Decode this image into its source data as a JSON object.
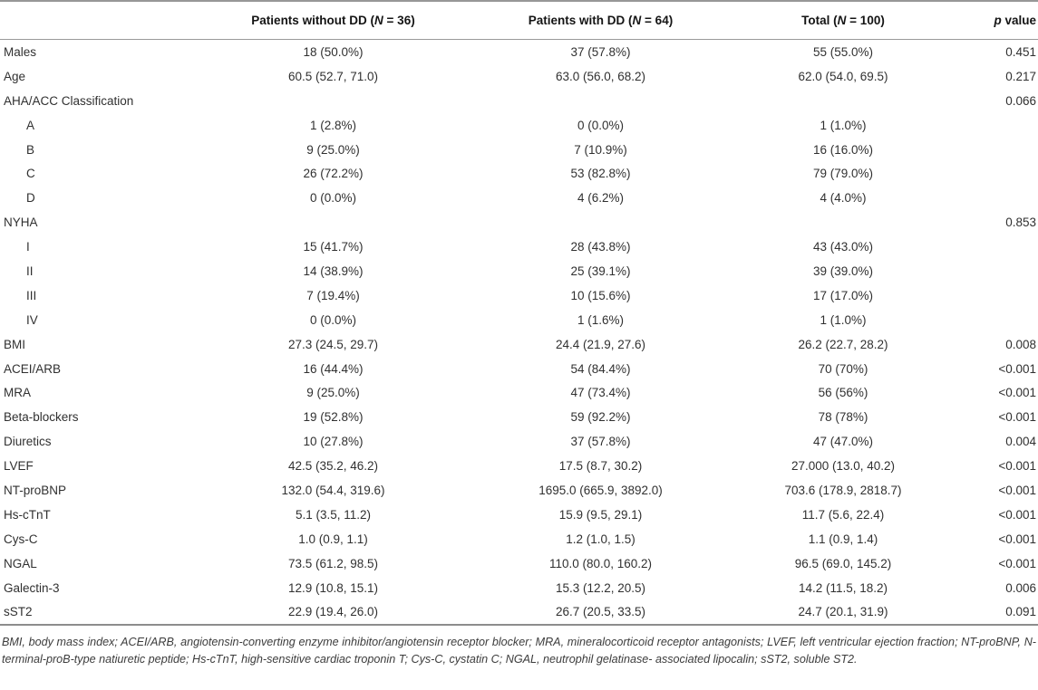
{
  "table": {
    "headers": [
      {
        "pre": "",
        "italic": "",
        "post": ""
      },
      {
        "pre": "Patients without DD (",
        "italic": "N",
        "post": " = 36)"
      },
      {
        "pre": "Patients with DD (",
        "italic": "N",
        "post": " = 64)"
      },
      {
        "pre": "Total (",
        "italic": "N",
        "post": " = 100)"
      },
      {
        "pre": "",
        "italic": "p",
        "post": " value"
      }
    ],
    "rows": [
      {
        "label": "Males",
        "indent": false,
        "without_dd": "18 (50.0%)",
        "with_dd": "37 (57.8%)",
        "total": "55 (55.0%)",
        "p": "0.451"
      },
      {
        "label": "Age",
        "indent": false,
        "without_dd": "60.5 (52.7, 71.0)",
        "with_dd": "63.0 (56.0, 68.2)",
        "total": "62.0 (54.0, 69.5)",
        "p": "0.217"
      },
      {
        "label": "AHA/ACC Classification",
        "indent": false,
        "without_dd": "",
        "with_dd": "",
        "total": "",
        "p": "0.066"
      },
      {
        "label": "A",
        "indent": true,
        "without_dd": "1 (2.8%)",
        "with_dd": "0 (0.0%)",
        "total": "1 (1.0%)",
        "p": ""
      },
      {
        "label": "B",
        "indent": true,
        "without_dd": "9 (25.0%)",
        "with_dd": "7 (10.9%)",
        "total": "16 (16.0%)",
        "p": ""
      },
      {
        "label": "C",
        "indent": true,
        "without_dd": "26 (72.2%)",
        "with_dd": "53 (82.8%)",
        "total": "79 (79.0%)",
        "p": ""
      },
      {
        "label": "D",
        "indent": true,
        "without_dd": "0 (0.0%)",
        "with_dd": "4 (6.2%)",
        "total": "4 (4.0%)",
        "p": ""
      },
      {
        "label": "NYHA",
        "indent": false,
        "without_dd": "",
        "with_dd": "",
        "total": "",
        "p": "0.853"
      },
      {
        "label": "I",
        "indent": true,
        "without_dd": "15 (41.7%)",
        "with_dd": "28 (43.8%)",
        "total": "43 (43.0%)",
        "p": ""
      },
      {
        "label": "II",
        "indent": true,
        "without_dd": "14 (38.9%)",
        "with_dd": "25 (39.1%)",
        "total": "39 (39.0%)",
        "p": ""
      },
      {
        "label": "III",
        "indent": true,
        "without_dd": "7 (19.4%)",
        "with_dd": "10 (15.6%)",
        "total": "17 (17.0%)",
        "p": ""
      },
      {
        "label": "IV",
        "indent": true,
        "without_dd": "0 (0.0%)",
        "with_dd": "1 (1.6%)",
        "total": "1 (1.0%)",
        "p": ""
      },
      {
        "label": "BMI",
        "indent": false,
        "without_dd": "27.3 (24.5, 29.7)",
        "with_dd": "24.4 (21.9, 27.6)",
        "total": "26.2 (22.7, 28.2)",
        "p": "0.008"
      },
      {
        "label": "ACEI/ARB",
        "indent": false,
        "without_dd": "16 (44.4%)",
        "with_dd": "54 (84.4%)",
        "total": "70 (70%)",
        "p": "<0.001"
      },
      {
        "label": "MRA",
        "indent": false,
        "without_dd": "9 (25.0%)",
        "with_dd": "47 (73.4%)",
        "total": "56 (56%)",
        "p": "<0.001"
      },
      {
        "label": "Beta-blockers",
        "indent": false,
        "without_dd": "19 (52.8%)",
        "with_dd": "59 (92.2%)",
        "total": "78 (78%)",
        "p": "<0.001"
      },
      {
        "label": "Diuretics",
        "indent": false,
        "without_dd": "10 (27.8%)",
        "with_dd": "37 (57.8%)",
        "total": "47 (47.0%)",
        "p": "0.004"
      },
      {
        "label": "LVEF",
        "indent": false,
        "without_dd": "42.5 (35.2, 46.2)",
        "with_dd": "17.5 (8.7, 30.2)",
        "total": "27.000 (13.0, 40.2)",
        "p": "<0.001"
      },
      {
        "label": "NT-proBNP",
        "indent": false,
        "without_dd": "132.0 (54.4, 319.6)",
        "with_dd": "1695.0 (665.9, 3892.0)",
        "total": "703.6 (178.9, 2818.7)",
        "p": "<0.001"
      },
      {
        "label": "Hs-cTnT",
        "indent": false,
        "without_dd": "5.1 (3.5, 11.2)",
        "with_dd": "15.9 (9.5, 29.1)",
        "total": "11.7 (5.6, 22.4)",
        "p": "<0.001"
      },
      {
        "label": "Cys-C",
        "indent": false,
        "without_dd": "1.0 (0.9, 1.1)",
        "with_dd": "1.2 (1.0, 1.5)",
        "total": "1.1 (0.9, 1.4)",
        "p": "<0.001"
      },
      {
        "label": "NGAL",
        "indent": false,
        "without_dd": "73.5 (61.2, 98.5)",
        "with_dd": "110.0 (80.0, 160.2)",
        "total": "96.5 (69.0, 145.2)",
        "p": "<0.001"
      },
      {
        "label": "Galectin-3",
        "indent": false,
        "without_dd": "12.9 (10.8, 15.1)",
        "with_dd": "15.3 (12.2, 20.5)",
        "total": "14.2 (11.5, 18.2)",
        "p": "0.006"
      },
      {
        "label": "sST2",
        "indent": false,
        "without_dd": "22.9 (19.4, 26.0)",
        "with_dd": "26.7 (20.5, 33.5)",
        "total": "24.7 (20.1, 31.9)",
        "p": "0.091"
      }
    ]
  },
  "footnote": "BMI, body mass index; ACEI/ARB, angiotensin-converting enzyme inhibitor/angiotensin receptor blocker; MRA, mineralocorticoid receptor antagonists; LVEF, left ventricular ejection fraction; NT-proBNP, N-terminal-proB-type natiuretic peptide; Hs-cTnT, high-sensitive cardiac troponin T; Cys-C, cystatin C; NGAL, neutrophil gelatinase- associated lipocalin; sST2, soluble ST2."
}
